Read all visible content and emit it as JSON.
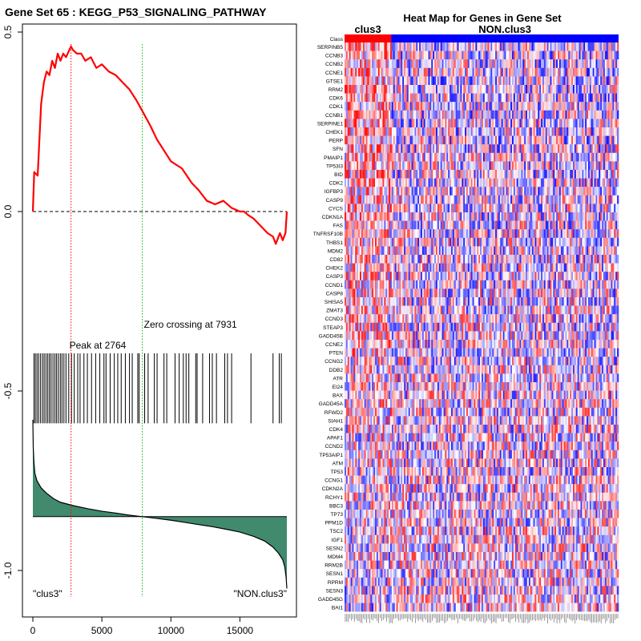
{
  "chart_data": [
    {
      "type": "line",
      "title": "Gene Set  65 : KEGG_P53_SIGNALING_PATHWAY",
      "xlim": [
        0,
        18500
      ],
      "ylim": [
        -1.07,
        0.51
      ],
      "x_ticks": [
        0,
        5000,
        10000,
        15000
      ],
      "x_tick_labels": [
        "0",
        "5000",
        "10000",
        "15000"
      ],
      "y_ticks": [
        0.5,
        0.0,
        -0.5,
        -1.0
      ],
      "y_tick_labels": [
        "0.5",
        "0.0",
        "-0.5",
        "-1.0"
      ],
      "running_enrichment_score": {
        "x": [
          0,
          100,
          350,
          600,
          800,
          1000,
          1200,
          1400,
          1600,
          1800,
          2000,
          2200,
          2400,
          2764,
          2900,
          3200,
          3500,
          3800,
          4200,
          4600,
          5000,
          5500,
          6000,
          6500,
          7000,
          7500,
          7931,
          8500,
          9000,
          9500,
          10000,
          10800,
          11500,
          12000,
          12600,
          13200,
          13800,
          14400,
          15000,
          15300,
          15600,
          16000,
          16500,
          17000,
          17400,
          17600,
          17900,
          18100,
          18300,
          18400
        ],
        "y": [
          0.0,
          0.11,
          0.1,
          0.3,
          0.36,
          0.39,
          0.38,
          0.42,
          0.4,
          0.44,
          0.42,
          0.44,
          0.43,
          0.46,
          0.45,
          0.44,
          0.44,
          0.42,
          0.43,
          0.4,
          0.41,
          0.39,
          0.38,
          0.36,
          0.34,
          0.31,
          0.28,
          0.24,
          0.2,
          0.17,
          0.14,
          0.12,
          0.08,
          0.06,
          0.03,
          0.02,
          0.03,
          0.01,
          0.0,
          0.0,
          -0.01,
          -0.02,
          -0.04,
          -0.06,
          -0.07,
          -0.09,
          -0.06,
          -0.08,
          -0.06,
          0.0
        ]
      },
      "zero_line": 0.0,
      "peak": {
        "x": 2764,
        "label": "Peak at 2764"
      },
      "zero_crossing": {
        "x": 7931,
        "label": "Zero crossing at 7931"
      },
      "hit_positions": [
        80,
        180,
        300,
        420,
        560,
        700,
        820,
        950,
        1080,
        1200,
        1320,
        1460,
        1600,
        1720,
        1850,
        1990,
        2110,
        2250,
        2400,
        2600,
        2800,
        3000,
        3250,
        3420,
        3700,
        3950,
        4250,
        4550,
        4850,
        5150,
        5300,
        5600,
        5900,
        6150,
        6400,
        6700,
        7000,
        7200,
        7600,
        7700,
        8100,
        8350,
        8800,
        9000,
        9500,
        9700,
        10300,
        10600,
        10900,
        11100,
        11300,
        11800,
        11900,
        12300,
        12800,
        13000,
        13300,
        13900,
        14100,
        14400,
        15800,
        17400,
        17850,
        18000
      ],
      "hit_band": {
        "top": -0.395,
        "bottom": -0.59
      },
      "ranked_metric": {
        "baseline": -0.85,
        "x": [
          0,
          30,
          80,
          150,
          300,
          600,
          1000,
          1500,
          2000,
          3000,
          4000,
          5000,
          6000,
          7000,
          7931,
          9000,
          10000,
          11000,
          12000,
          13000,
          14000,
          15000,
          16000,
          16800,
          17400,
          17800,
          18100,
          18250,
          18350,
          18400
        ],
        "y": [
          -0.58,
          -0.66,
          -0.7,
          -0.73,
          -0.75,
          -0.77,
          -0.785,
          -0.8,
          -0.81,
          -0.82,
          -0.828,
          -0.835,
          -0.84,
          -0.846,
          -0.85,
          -0.855,
          -0.86,
          -0.866,
          -0.872,
          -0.878,
          -0.885,
          -0.893,
          -0.905,
          -0.918,
          -0.935,
          -0.952,
          -0.97,
          -0.99,
          -1.02,
          -1.05
        ]
      },
      "fill_color": "#418a6e",
      "curve_color": "#ff0000",
      "left_class_label": "\"clus3\"",
      "right_class_label": "\"NON.clus3\""
    },
    {
      "type": "heatmap",
      "title": "Heat Map for Genes in Gene Set",
      "class_row_label": "Class",
      "class_groups": [
        {
          "label": "clus3",
          "color": "#ff0000",
          "fraction": 0.17
        },
        {
          "label": "NON.clus3",
          "color": "#0000ff",
          "fraction": 0.83
        }
      ],
      "genes": [
        "SERPINB5",
        "CCNB3",
        "CCNB2",
        "CCNE1",
        "GTSE1",
        "RRM2",
        "CDK6",
        "CDK1",
        "CCNB1",
        "SERPINE1",
        "CHEK1",
        "PERP",
        "SFN",
        "PMAIP1",
        "TP53I3",
        "BID",
        "CDK2",
        "IGFBP3",
        "CASP9",
        "CYCS",
        "CDKN1A",
        "FAS",
        "TNFRSF10B",
        "THBS1",
        "MDM2",
        "CD82",
        "CHEK2",
        "CASP3",
        "CCND1",
        "CASP8",
        "SHISA5",
        "ZMAT3",
        "CCND3",
        "STEAP3",
        "GADD45B",
        "CCNE2",
        "PTEN",
        "CCNG2",
        "DDB2",
        "ATR",
        "EI24",
        "BAX",
        "GADD45A",
        "RFWD2",
        "SIAH1",
        "CDK4",
        "APAF1",
        "CCND2",
        "TP53AIP1",
        "ATM",
        "TP53",
        "CCNG1",
        "CDKN2A",
        "RCHY1",
        "BBC3",
        "TP73",
        "PPM1D",
        "TSC2",
        "IGF1",
        "SESN2",
        "MDM4",
        "RRM2B",
        "SESN1",
        "RPRM",
        "SESN3",
        "GADD45G",
        "BAI1"
      ],
      "n_samples": 180,
      "color_scale": {
        "low": "#0000ff",
        "mid": "#ffffff",
        "high": "#ff0000"
      }
    }
  ]
}
